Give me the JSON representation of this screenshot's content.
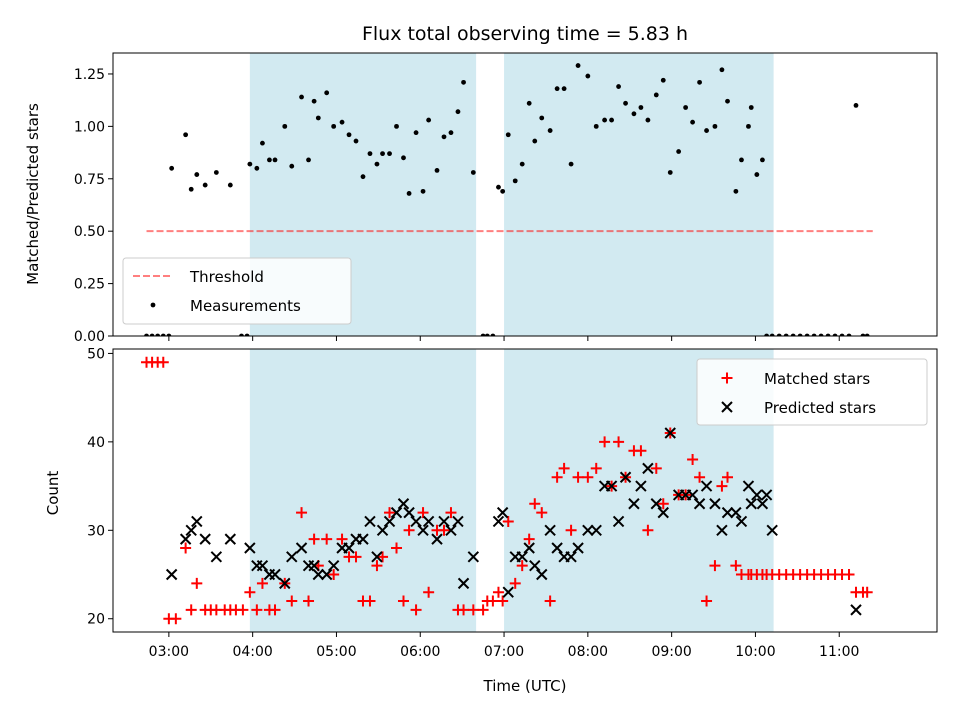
{
  "chart_data": [
    {
      "type": "scatter",
      "title": "Flux total observing time = 5.83 h",
      "ylabel": "Matched/Predicted stars",
      "xlabel": "",
      "xlim": [
        "02:20",
        "12:10"
      ],
      "ylim": [
        0,
        1.35
      ],
      "yticks": [
        0.0,
        0.25,
        0.5,
        0.75,
        1.0,
        1.25
      ],
      "ytick_labels": [
        "0.00",
        "0.25",
        "0.50",
        "0.75",
        "1.00",
        "1.25"
      ],
      "xticks": [
        "03:00",
        "04:00",
        "05:00",
        "06:00",
        "07:00",
        "08:00",
        "09:00",
        "10:00",
        "11:00"
      ],
      "xtick_labels": [],
      "shaded_spans": [
        [
          "03:58",
          "06:40"
        ],
        [
          "07:00",
          "10:13"
        ]
      ],
      "threshold": {
        "name": "Threshold",
        "value": 0.5,
        "x_range": [
          "02:44",
          "11:24"
        ]
      },
      "legend": {
        "position": "lower-left",
        "entries": [
          "Threshold",
          "Measurements"
        ]
      },
      "series": [
        {
          "name": "Measurements",
          "x": [
            "02:44",
            "02:48",
            "02:52",
            "02:56",
            "03:00",
            "03:02",
            "03:12",
            "03:16",
            "03:20",
            "03:26",
            "03:34",
            "03:44",
            "03:52",
            "03:56",
            "03:58",
            "04:03",
            "04:07",
            "04:12",
            "04:16",
            "04:23",
            "04:28",
            "04:35",
            "04:40",
            "04:44",
            "04:47",
            "04:53",
            "04:58",
            "05:04",
            "05:09",
            "05:14",
            "05:19",
            "05:24",
            "05:29",
            "05:33",
            "05:38",
            "05:43",
            "05:48",
            "05:52",
            "05:57",
            "06:02",
            "06:06",
            "06:12",
            "06:17",
            "06:22",
            "06:27",
            "06:31",
            "06:38",
            "06:45",
            "06:48",
            "06:52",
            "06:56",
            "06:59",
            "07:03",
            "07:08",
            "07:13",
            "07:18",
            "07:22",
            "07:27",
            "07:33",
            "07:38",
            "07:43",
            "07:48",
            "07:53",
            "08:00",
            "08:06",
            "08:12",
            "08:17",
            "08:22",
            "08:27",
            "08:33",
            "08:38",
            "08:43",
            "08:49",
            "08:54",
            "08:59",
            "09:05",
            "09:10",
            "09:15",
            "09:20",
            "09:25",
            "09:31",
            "09:36",
            "09:40",
            "09:46",
            "09:50",
            "09:55",
            "09:57",
            "10:01",
            "10:05",
            "10:08",
            "10:12",
            "10:17",
            "10:22",
            "10:27",
            "10:32",
            "10:37",
            "10:42",
            "10:47",
            "10:52",
            "10:57",
            "11:02",
            "11:07",
            "11:12",
            "11:17",
            "11:20"
          ],
          "y": [
            0.0,
            0.0,
            0.0,
            0.0,
            0.0,
            0.8,
            0.96,
            0.7,
            0.77,
            0.72,
            0.78,
            0.72,
            0.0,
            0.0,
            0.82,
            0.8,
            0.92,
            0.84,
            0.84,
            1.0,
            0.81,
            1.14,
            0.84,
            1.12,
            1.04,
            1.16,
            1.0,
            1.02,
            0.96,
            0.93,
            0.76,
            0.87,
            0.82,
            0.87,
            0.87,
            1.0,
            0.85,
            0.68,
            0.97,
            0.69,
            1.03,
            0.79,
            0.95,
            0.97,
            1.07,
            1.21,
            0.78,
            0.0,
            0.0,
            0.0,
            0.71,
            0.69,
            0.96,
            0.74,
            0.82,
            1.11,
            0.93,
            1.04,
            0.98,
            1.18,
            1.18,
            0.82,
            1.29,
            1.24,
            1.0,
            1.03,
            1.03,
            1.19,
            1.11,
            1.06,
            1.09,
            1.03,
            1.15,
            1.22,
            0.78,
            0.88,
            1.09,
            1.02,
            1.21,
            0.98,
            1.0,
            1.27,
            1.12,
            0.69,
            0.84,
            1.0,
            1.09,
            0.77,
            0.84,
            0.0,
            0.0,
            0.0,
            0.0,
            0.0,
            0.0,
            0.0,
            0.0,
            0.0,
            0.0,
            0.0,
            0.0,
            0.0,
            1.1,
            0.0,
            0.0
          ],
          "color": "#000000",
          "marker": "dot"
        }
      ]
    },
    {
      "type": "scatter",
      "title": "",
      "ylabel": "Count",
      "xlabel": "Time (UTC)",
      "xlim": [
        "02:20",
        "12:10"
      ],
      "ylim": [
        18.5,
        50.5
      ],
      "yticks": [
        20,
        30,
        40,
        50
      ],
      "ytick_labels": [
        "20",
        "30",
        "40",
        "50"
      ],
      "xticks": [
        "03:00",
        "04:00",
        "05:00",
        "06:00",
        "07:00",
        "08:00",
        "09:00",
        "10:00",
        "11:00"
      ],
      "xtick_labels": [
        "03:00",
        "04:00",
        "05:00",
        "06:00",
        "07:00",
        "08:00",
        "09:00",
        "10:00",
        "11:00"
      ],
      "shaded_spans": [
        [
          "03:58",
          "06:40"
        ],
        [
          "07:00",
          "10:13"
        ]
      ],
      "legend": {
        "position": "top-right",
        "entries": [
          "Matched stars",
          "Predicted stars"
        ]
      },
      "series": [
        {
          "name": "Matched stars",
          "x": [
            "02:44",
            "02:48",
            "02:52",
            "02:56",
            "03:00",
            "03:05",
            "03:12",
            "03:16",
            "03:20",
            "03:26",
            "03:30",
            "03:34",
            "03:40",
            "03:44",
            "03:48",
            "03:53",
            "03:58",
            "04:03",
            "04:07",
            "04:12",
            "04:16",
            "04:23",
            "04:28",
            "04:35",
            "04:40",
            "04:44",
            "04:47",
            "04:53",
            "04:58",
            "05:04",
            "05:09",
            "05:14",
            "05:19",
            "05:24",
            "05:29",
            "05:33",
            "05:38",
            "05:43",
            "05:48",
            "05:52",
            "05:57",
            "06:02",
            "06:06",
            "06:12",
            "06:17",
            "06:22",
            "06:27",
            "06:31",
            "06:38",
            "06:45",
            "06:48",
            "06:52",
            "06:56",
            "06:59",
            "07:03",
            "07:08",
            "07:13",
            "07:18",
            "07:22",
            "07:27",
            "07:33",
            "07:38",
            "07:43",
            "07:48",
            "07:53",
            "08:00",
            "08:06",
            "08:12",
            "08:17",
            "08:22",
            "08:27",
            "08:33",
            "08:38",
            "08:43",
            "08:49",
            "08:54",
            "08:59",
            "09:05",
            "09:10",
            "09:15",
            "09:20",
            "09:25",
            "09:31",
            "09:36",
            "09:40",
            "09:46",
            "09:50",
            "09:55",
            "09:57",
            "10:01",
            "10:05",
            "10:08",
            "10:12",
            "10:17",
            "10:22",
            "10:27",
            "10:32",
            "10:37",
            "10:42",
            "10:47",
            "10:52",
            "10:57",
            "11:02",
            "11:07",
            "11:12",
            "11:17",
            "11:20"
          ],
          "y": [
            49,
            49,
            49,
            49,
            20,
            20,
            28,
            21,
            24,
            21,
            21,
            21,
            21,
            21,
            21,
            21,
            23,
            21,
            24,
            21,
            21,
            24,
            22,
            32,
            22,
            29,
            26,
            29,
            25,
            29,
            27,
            27,
            22,
            22,
            26,
            27,
            32,
            28,
            22,
            30,
            21,
            32,
            23,
            30,
            30,
            32,
            21,
            21,
            21,
            21,
            22,
            22,
            23,
            22,
            31,
            24,
            26,
            29,
            33,
            32,
            22,
            36,
            37,
            30,
            36,
            36,
            37,
            40,
            35,
            40,
            36,
            39,
            39,
            30,
            37,
            33,
            41,
            34,
            34,
            38,
            36,
            22,
            26,
            35,
            36,
            26,
            25,
            25,
            25,
            25,
            25,
            25,
            25,
            25,
            25,
            25,
            25,
            25,
            25,
            25,
            25,
            25,
            25,
            25,
            23,
            23,
            23
          ],
          "color": "#ff0000",
          "marker": "plus"
        },
        {
          "name": "Predicted stars",
          "x": [
            "03:02",
            "03:12",
            "03:16",
            "03:20",
            "03:26",
            "03:34",
            "03:44",
            "03:58",
            "04:03",
            "04:07",
            "04:12",
            "04:16",
            "04:23",
            "04:28",
            "04:35",
            "04:40",
            "04:44",
            "04:47",
            "04:53",
            "04:58",
            "05:04",
            "05:09",
            "05:14",
            "05:19",
            "05:24",
            "05:29",
            "05:33",
            "05:38",
            "05:43",
            "05:48",
            "05:52",
            "05:57",
            "06:02",
            "06:06",
            "06:12",
            "06:17",
            "06:22",
            "06:27",
            "06:31",
            "06:38",
            "06:56",
            "06:59",
            "07:03",
            "07:08",
            "07:13",
            "07:18",
            "07:22",
            "07:27",
            "07:33",
            "07:38",
            "07:43",
            "07:48",
            "07:53",
            "08:00",
            "08:06",
            "08:12",
            "08:17",
            "08:22",
            "08:27",
            "08:33",
            "08:38",
            "08:43",
            "08:49",
            "08:54",
            "08:59",
            "09:05",
            "09:10",
            "09:15",
            "09:20",
            "09:25",
            "09:31",
            "09:36",
            "09:40",
            "09:46",
            "09:50",
            "09:55",
            "09:57",
            "10:01",
            "10:05",
            "10:08",
            "10:12",
            "11:12"
          ],
          "y": [
            25,
            29,
            30,
            31,
            29,
            27,
            29,
            28,
            26,
            26,
            25,
            25,
            24,
            27,
            28,
            26,
            26,
            25,
            25,
            26,
            28,
            28,
            29,
            29,
            31,
            27,
            30,
            31,
            32,
            33,
            32,
            31,
            30,
            31,
            29,
            31,
            30,
            31,
            24,
            27,
            31,
            32,
            23,
            27,
            27,
            28,
            26,
            25,
            30,
            28,
            27,
            27,
            28,
            30,
            30,
            35,
            35,
            31,
            36,
            33,
            35,
            37,
            33,
            32,
            41,
            34,
            34,
            34,
            33,
            35,
            33,
            30,
            32,
            32,
            31,
            35,
            33,
            34,
            33,
            34,
            30,
            21
          ],
          "color": "#000000",
          "marker": "x"
        }
      ]
    }
  ]
}
